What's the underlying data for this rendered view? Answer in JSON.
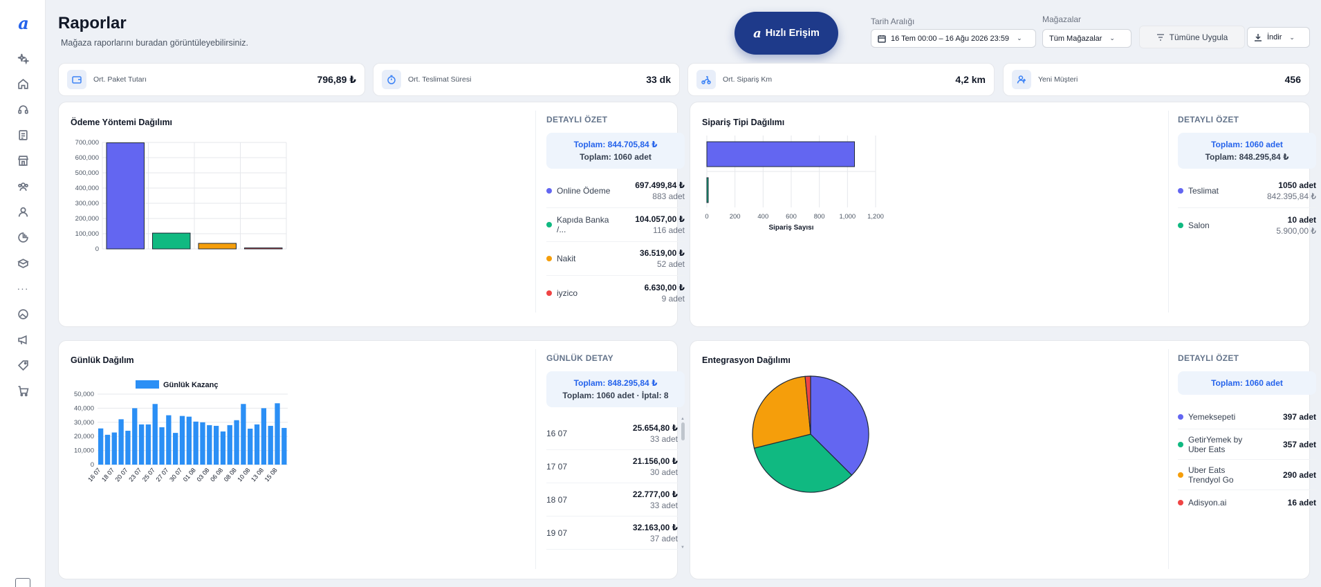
{
  "header": {
    "title": "Raporlar",
    "subtitle": "Mağaza raporlarını buradan görüntüleyebilirsiniz.",
    "quick_access": "Hızlı Erişim",
    "date_range_label": "Tarih Aralığı",
    "date_range_value": "16 Tem 00:00 – 16 Ağu 2026 23:59",
    "stores_label": "Mağazalar",
    "stores_value": "Tüm Mağazalar",
    "apply_all": "Tümüne Uygula",
    "download": "İndir"
  },
  "stats": [
    {
      "label": "Ort. Paket Tutarı",
      "value": "796,89 ₺",
      "icon": "wallet-icon"
    },
    {
      "label": "Ort. Teslimat Süresi",
      "value": "33 dk",
      "icon": "timer-icon"
    },
    {
      "label": "Ort. Sipariş Km",
      "value": "4,2 km",
      "icon": "scooter-icon"
    },
    {
      "label": "Yeni Müşteri",
      "value": "456",
      "icon": "user-plus-icon"
    }
  ],
  "payment": {
    "title": "Ödeme Yöntemi Dağılımı",
    "summary_head": "DETAYLI ÖZET",
    "total_amount": "Toplam: 844.705,84 ₺",
    "total_count": "Toplam: 1060 adet",
    "items": [
      {
        "name": "Online Ödeme",
        "amount": "697.499,84 ₺",
        "count": "883 adet",
        "color": "#6366f1"
      },
      {
        "name": "Kapıda Banka /...",
        "amount": "104.057,00 ₺",
        "count": "116 adet",
        "color": "#10b981"
      },
      {
        "name": "Nakit",
        "amount": "36.519,00 ₺",
        "count": "52 adet",
        "color": "#f59e0b"
      },
      {
        "name": "iyzico",
        "amount": "6.630,00 ₺",
        "count": "9 adet",
        "color": "#ef4444"
      }
    ]
  },
  "order_type": {
    "title": "Sipariş Tipi Dağılımı",
    "summary_head": "DETAYLI ÖZET",
    "total_count": "Toplam: 1060 adet",
    "total_amount": "Toplam: 848.295,84 ₺",
    "items": [
      {
        "name": "Teslimat",
        "count": "1050 adet",
        "amount": "842.395,84 ₺",
        "color": "#6366f1"
      },
      {
        "name": "Salon",
        "count": "10 adet",
        "amount": "5.900,00 ₺",
        "color": "#10b981"
      }
    ]
  },
  "daily": {
    "title": "Günlük Dağılım",
    "summary_head": "GÜNLÜK DETAY",
    "total_amount": "Toplam: 848.295,84 ₺",
    "total_count": "Toplam: 1060 adet · İptal: 8",
    "items": [
      {
        "date": "16 07",
        "amount": "25.654,80 ₺",
        "count": "33 adet"
      },
      {
        "date": "17 07",
        "amount": "21.156,00 ₺",
        "count": "30 adet"
      },
      {
        "date": "18 07",
        "amount": "22.777,00 ₺",
        "count": "33 adet"
      },
      {
        "date": "19 07",
        "amount": "32.163,00 ₺",
        "count": "37 adet"
      }
    ]
  },
  "integration": {
    "title": "Entegrasyon Dağılımı",
    "summary_head": "DETAYLI ÖZET",
    "total_amount": "Toplam: 1060 adet",
    "items": [
      {
        "name": "Yemeksepeti",
        "count": "397 adet",
        "color": "#6366f1"
      },
      {
        "name": "GetirYemek by Uber Eats",
        "count": "357 adet",
        "color": "#10b981"
      },
      {
        "name": "Uber Eats Trendyol Go",
        "count": "290 adet",
        "color": "#f59e0b"
      },
      {
        "name": "Adisyon.ai",
        "count": "16 adet",
        "color": "#ef4444"
      }
    ]
  },
  "chart_data": [
    {
      "type": "bar",
      "categories": [
        "Online Ödeme",
        "Kapıda Banka /...",
        "Nakit",
        "iyzico"
      ],
      "values": [
        697499.84,
        104057,
        36519,
        6630
      ],
      "colors": [
        "#6366f1",
        "#10b981",
        "#f59e0b",
        "#ef4444"
      ],
      "ylim": [
        0,
        700000
      ],
      "yticks": [
        "700,000",
        "600,000",
        "500,000",
        "400,000",
        "300,000",
        "200,000",
        "100,000",
        "0"
      ],
      "grid": true
    },
    {
      "type": "bar",
      "orientation": "horizontal",
      "categories": [
        "Teslimat",
        "Salon"
      ],
      "values": [
        1050,
        10
      ],
      "colors": [
        "#6366f1",
        "#10b981"
      ],
      "xlim": [
        0,
        1200
      ],
      "xticks": [
        "0",
        "200",
        "400",
        "600",
        "800",
        "1,000",
        "1,200"
      ],
      "xlabel": "Sipariş Sayısı",
      "grid": true
    },
    {
      "type": "bar",
      "legend": "Günlük Kazanç",
      "color": "#2b8ff5",
      "ylim": [
        0,
        50000
      ],
      "yticks": [
        "50,000",
        "40,000",
        "30,000",
        "20,000",
        "10,000",
        "0"
      ],
      "xtick_labels": [
        "16 07",
        "18 07",
        "20 07",
        "23 07",
        "25 07",
        "27 07",
        "30 07",
        "01 08",
        "03 08",
        "06 08",
        "08 08",
        "10 08",
        "13 08",
        "15 08"
      ],
      "values": [
        25655,
        21156,
        22777,
        32163,
        24000,
        40000,
        28500,
        28500,
        43000,
        26500,
        35000,
        22500,
        34500,
        34000,
        30500,
        30000,
        28000,
        27500,
        23500,
        28000,
        31500,
        43000,
        25500,
        28500,
        40000,
        27500,
        43500,
        26000
      ]
    },
    {
      "type": "pie",
      "categories": [
        "Yemeksepeti",
        "GetirYemek by Uber Eats",
        "Uber Eats Trendyol Go",
        "Adisyon.ai"
      ],
      "values": [
        397,
        357,
        290,
        16
      ],
      "colors": [
        "#6366f1",
        "#10b981",
        "#f59e0b",
        "#ef4444"
      ]
    }
  ]
}
